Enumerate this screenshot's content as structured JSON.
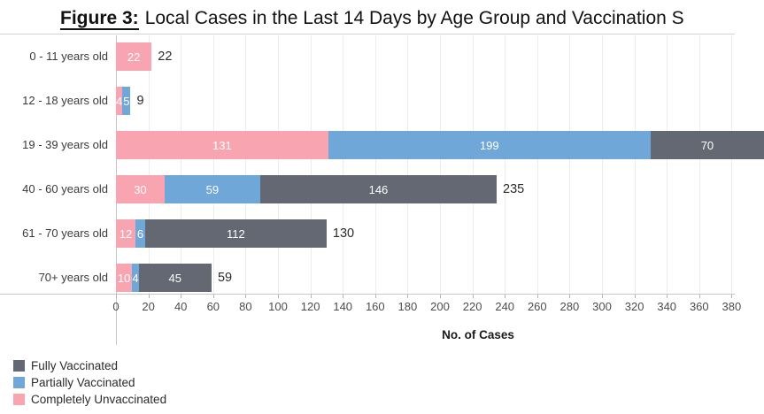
{
  "title": {
    "prefix": "Figure 3:",
    "text": "Local Cases in the Last 14 Days by Age Group and Vaccination S"
  },
  "chart_data": {
    "type": "bar",
    "orientation": "horizontal",
    "stacked": true,
    "title": "Figure 3: Local Cases in the Last 14 Days by Age Group and Vaccination S",
    "xlabel": "No. of Cases",
    "categories": [
      "0 - 11 years old",
      "12 - 18 years old",
      "19 - 39 years old",
      "40 - 60 years old",
      "61 - 70 years old",
      "70+ years old"
    ],
    "series": [
      {
        "name": "Completely Unvaccinated",
        "color": "#f8a5b1",
        "values": [
          22,
          4,
          131,
          30,
          12,
          10
        ]
      },
      {
        "name": "Partially Vaccinated",
        "color": "#6fa7d9",
        "values": [
          0,
          5,
          199,
          59,
          6,
          4
        ]
      },
      {
        "name": "Fully Vaccinated",
        "color": "#636872",
        "values": [
          0,
          0,
          70,
          146,
          112,
          45
        ]
      }
    ],
    "totals": [
      22,
      9,
      null,
      235,
      130,
      59
    ],
    "x_ticks": [
      0,
      20,
      40,
      60,
      80,
      100,
      120,
      140,
      160,
      180,
      200,
      220,
      240,
      260,
      280,
      300,
      320,
      340,
      360,
      380
    ],
    "xlim": [
      0,
      382
    ],
    "grid": true,
    "legend_position": "bottom-left",
    "legend": [
      {
        "label": "Fully Vaccinated",
        "color": "#636872"
      },
      {
        "label": "Partially Vaccinated",
        "color": "#6fa7d9"
      },
      {
        "label": "Completely Unvaccinated",
        "color": "#f8a5b1"
      }
    ],
    "colors": {
      "fully_vaccinated": "#636872",
      "partially_vaccinated": "#6fa7d9",
      "completely_unvaccinated": "#f8a5b1"
    }
  }
}
